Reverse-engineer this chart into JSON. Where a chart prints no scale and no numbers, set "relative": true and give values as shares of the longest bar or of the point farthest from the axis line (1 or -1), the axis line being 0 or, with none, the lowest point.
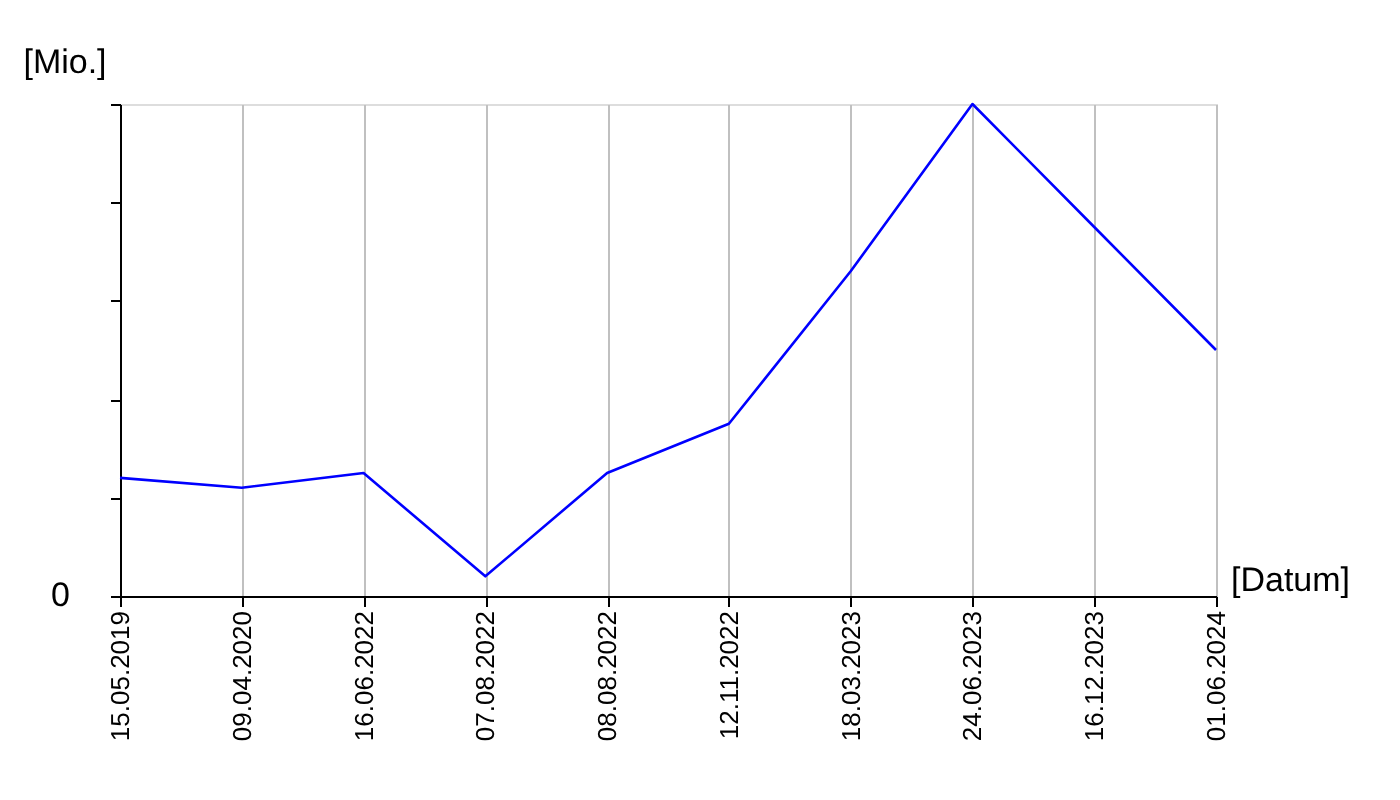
{
  "chart_data": {
    "type": "line",
    "relative": true,
    "xlabel": "[Datum]",
    "ylabel": "[Mio.]",
    "categories": [
      "15.05.2019",
      "09.04.2020",
      "16.06.2022",
      "07.08.2022",
      "08.08.2022",
      "12.11.2022",
      "18.03.2023",
      "24.06.2023",
      "16.12.2023",
      "01.06.2024"
    ],
    "series": [
      {
        "color": "#0000ff",
        "values": [
          0.24,
          0.22,
          0.25,
          0.04,
          0.25,
          0.35,
          0.66,
          1,
          0.75,
          0.5
        ]
      }
    ],
    "annotations": [
      "0"
    ],
    "grid": "x",
    "marker": "none",
    "line_style": "solid"
  }
}
